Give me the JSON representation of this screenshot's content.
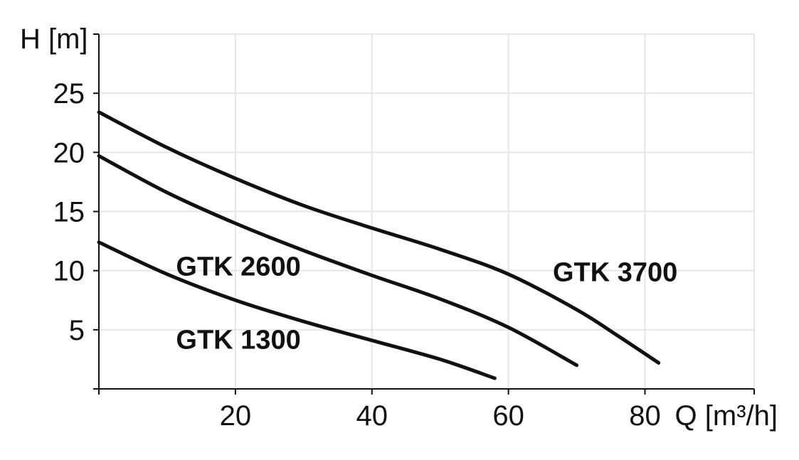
{
  "chart_data": {
    "type": "line",
    "xlabel": "Q [m³/h]",
    "ylabel": "H [m]",
    "xlim": [
      0,
      96
    ],
    "ylim": [
      0,
      30
    ],
    "x_ticks": [
      20,
      40,
      60,
      80
    ],
    "y_ticks": [
      5,
      10,
      15,
      20,
      25
    ],
    "grid": true,
    "series": [
      {
        "name": "GTK 1300",
        "points": [
          [
            0,
            12.4
          ],
          [
            10,
            9.7
          ],
          [
            20,
            7.5
          ],
          [
            30,
            5.7
          ],
          [
            40,
            4.1
          ],
          [
            50,
            2.5
          ],
          [
            58,
            0.9
          ]
        ]
      },
      {
        "name": "GTK 2600",
        "points": [
          [
            0,
            19.7
          ],
          [
            10,
            16.6
          ],
          [
            20,
            14.0
          ],
          [
            30,
            11.7
          ],
          [
            40,
            9.6
          ],
          [
            50,
            7.6
          ],
          [
            60,
            5.2
          ],
          [
            70,
            2.0
          ]
        ]
      },
      {
        "name": "GTK 3700",
        "points": [
          [
            0,
            23.4
          ],
          [
            10,
            20.4
          ],
          [
            20,
            17.8
          ],
          [
            30,
            15.5
          ],
          [
            40,
            13.6
          ],
          [
            50,
            11.8
          ],
          [
            60,
            9.7
          ],
          [
            70,
            6.7
          ],
          [
            76,
            4.5
          ],
          [
            82,
            2.2
          ]
        ]
      }
    ],
    "colors": {
      "curve": "#111111",
      "grid": "#e6e6e6",
      "axis": "#111111"
    }
  }
}
